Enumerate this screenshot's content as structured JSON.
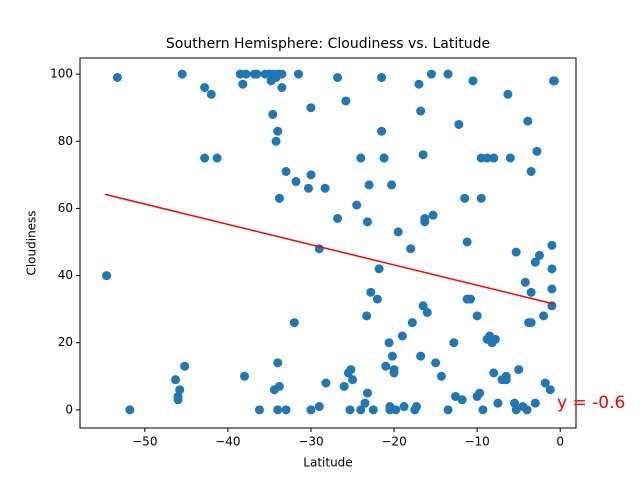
{
  "chart_data": {
    "type": "scatter",
    "title": "Southern Hemisphere: Cloudiness vs. Latitude",
    "x_label": "Latitude",
    "y_label": "Cloudiness",
    "color": "#1f77b4",
    "annotation": "y = -0.6",
    "x": [
      -54.6,
      -53.3,
      -51.8,
      -45.5,
      -45.2,
      -46.3,
      -46,
      -45.8,
      -46,
      -42.8,
      -42,
      -42.8,
      -41.3,
      -38.5,
      -38.2,
      -37.8,
      -38,
      -36.8,
      -36.5,
      -36.2,
      -35.5,
      -35,
      -34.8,
      -34.5,
      -34.2,
      -34,
      -33.8,
      -34.6,
      -34,
      -34.2,
      -33.5,
      -33.5,
      -33.8,
      -33,
      -34.4,
      -33.8,
      -34,
      -34,
      -33,
      -32,
      -31.8,
      -31.5,
      -30.3,
      -30,
      -30,
      -29,
      -29,
      -30,
      -28.3,
      -28.2,
      -26.8,
      -26.8,
      -26,
      -25.8,
      -25.5,
      -25.3,
      -25,
      -25.2,
      -24.5,
      -24,
      -24,
      -23.5,
      -23.2,
      -23.3,
      -23.2,
      -23,
      -22.8,
      -22.5,
      -22,
      -21.8,
      -21.5,
      -21.5,
      -21.2,
      -21,
      -20.6,
      -20.5,
      -20.5,
      -20.3,
      -20.2,
      -20,
      -20,
      -19.8,
      -19.5,
      -19,
      -18.8,
      -18,
      -17.8,
      -17.5,
      -17.3,
      -17,
      -16.8,
      -16.8,
      -16.5,
      -16.5,
      -16.3,
      -16.3,
      -16,
      -15.5,
      -15.3,
      -15,
      -14.3,
      -13.5,
      -13.5,
      -12.8,
      -12.6,
      -12.2,
      -11.8,
      -11.5,
      -11.2,
      -11.2,
      -10.8,
      -10.5,
      -10,
      -10,
      -9.7,
      -9.5,
      -9.5,
      -9.3,
      -8.8,
      -8.8,
      -8.5,
      -8.2,
      -8,
      -8,
      -7.8,
      -7.5,
      -7,
      -6.5,
      -6.5,
      -6.3,
      -6,
      -5.5,
      -5.3,
      -5.3,
      -5,
      -4.5,
      -4.2,
      -4,
      -3.9,
      -3.8,
      -3.5,
      -3.5,
      -3.5,
      -3,
      -3,
      -2.8,
      -2.5,
      -2,
      -1.8,
      -1.2,
      -1,
      -1,
      -1,
      -1,
      -0.8,
      -0.7
    ],
    "values": [
      40,
      99,
      0,
      100,
      13,
      9,
      4,
      6,
      3,
      96,
      94,
      75,
      75,
      100,
      97,
      100,
      10,
      100,
      100,
      0,
      100,
      100,
      98,
      100,
      99,
      100,
      100,
      88,
      83,
      80,
      96,
      100,
      63,
      71,
      6,
      7,
      14,
      0,
      0,
      26,
      68,
      100,
      66,
      70,
      90,
      48,
      1,
      0,
      66,
      8,
      57,
      99,
      7,
      92,
      11,
      0,
      9,
      12,
      61,
      75,
      0,
      2,
      5,
      28,
      56,
      67,
      35,
      0,
      33,
      42,
      99,
      83,
      75,
      13,
      20,
      1,
      0,
      67,
      16,
      11,
      12,
      0,
      53,
      22,
      1,
      48,
      26,
      0,
      1,
      97,
      89,
      16,
      76,
      31,
      56,
      57,
      29,
      100,
      58,
      14,
      10,
      100,
      0,
      20,
      4,
      85,
      3,
      63,
      50,
      33,
      33,
      98,
      28,
      4,
      5,
      75,
      63,
      0,
      75,
      21,
      22,
      20,
      75,
      11,
      21,
      2,
      9,
      10,
      9,
      94,
      75,
      2,
      0,
      47,
      12,
      1,
      38,
      0,
      86,
      26,
      26,
      71,
      35,
      44,
      2,
      77,
      46,
      28,
      8,
      6,
      49,
      42,
      36,
      31,
      98,
      98
    ],
    "line": {
      "color": "#ff0000",
      "x": [
        -54.8,
        -0.7
      ],
      "values": [
        64.2,
        31.5
      ]
    },
    "xlim": [
      -57.8,
      1.9
    ],
    "ylim": [
      -5.4,
      104.8
    ],
    "xticks": [
      {
        "value": -50,
        "label": "−50"
      },
      {
        "value": -40,
        "label": "−40"
      },
      {
        "value": -30,
        "label": "−30"
      },
      {
        "value": -20,
        "label": "−20"
      },
      {
        "value": -10,
        "label": "−10"
      },
      0
    ],
    "yticks": [
      0,
      20,
      40,
      60,
      80,
      100
    ]
  }
}
